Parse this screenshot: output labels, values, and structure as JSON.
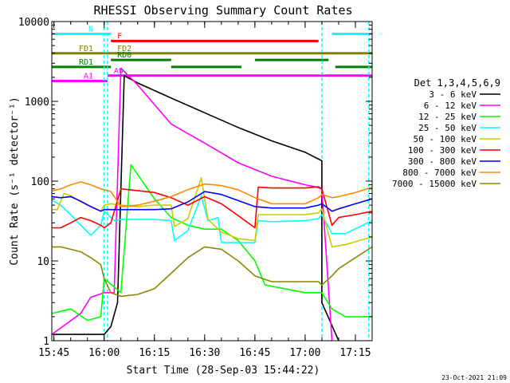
{
  "chart_data": {
    "type": "line",
    "title": "RHESSI Observing Summary Count Rates",
    "xlabel": "Start Time (28-Sep-03 15:44:22)",
    "ylabel": "Count Rate (s⁻¹ detector⁻¹)",
    "footer": "23-Oct-2021 21:09",
    "y_scale": "log",
    "xlim": [
      "15:44:22",
      "17:20:00"
    ],
    "ylim": [
      1,
      10000
    ],
    "x_ticks": [
      "15:45",
      "16:00",
      "16:15",
      "16:30",
      "16:45",
      "17:00",
      "17:15"
    ],
    "y_ticks": [
      "1",
      "10",
      "100",
      "1000",
      "10000"
    ],
    "grid": false,
    "legend_position": "right",
    "legend_title": "Det 1,3,4,5,6,9",
    "series": [
      {
        "name": "3 - 6 keV",
        "color": "#000000",
        "x": [
          "15:44:22",
          "16:00",
          "16:02",
          "16:04",
          "16:06",
          "16:10",
          "16:20",
          "16:30",
          "16:40",
          "16:50",
          "17:00",
          "17:05",
          "17:05",
          "17:10"
        ],
        "y": [
          1.2,
          1.2,
          1.5,
          3,
          2100,
          1700,
          1100,
          720,
          470,
          320,
          230,
          180,
          3,
          1
        ]
      },
      {
        "name": "6 - 12 keV",
        "color": "#ff00ff",
        "x": [
          "15:44:22",
          "15:53",
          "15:56",
          "16:00",
          "16:03",
          "16:05",
          "16:10",
          "16:20",
          "16:30",
          "16:40",
          "16:50",
          "17:00",
          "17:03",
          "17:05",
          "17:08"
        ],
        "y": [
          1.2,
          2.2,
          3.5,
          4,
          4,
          2600,
          1600,
          520,
          300,
          170,
          115,
          90,
          85,
          80,
          1
        ]
      },
      {
        "name": "12 - 25 keV",
        "color": "#00ff00",
        "x": [
          "15:44:22",
          "15:50",
          "15:55",
          "15:59",
          "16:00",
          "16:05",
          "16:08",
          "16:15",
          "16:20",
          "16:25",
          "16:30",
          "16:35",
          "16:40",
          "16:45",
          "16:48",
          "17:00",
          "17:05",
          "17:08",
          "17:12",
          "17:20"
        ],
        "y": [
          2.2,
          2.5,
          1.8,
          2.0,
          6,
          4,
          160,
          60,
          35,
          28,
          25,
          25,
          18,
          10,
          5,
          4,
          4,
          2.5,
          2.0,
          2.0
        ]
      },
      {
        "name": "25 - 50 keV",
        "color": "#00ffff",
        "x": [
          "15:44:22",
          "15:47",
          "15:50",
          "15:53",
          "15:56",
          "15:59",
          "16:00",
          "16:03",
          "16:05",
          "16:10",
          "16:15",
          "16:20",
          "16:21",
          "16:25",
          "16:29",
          "16:31",
          "16:34",
          "16:35",
          "16:40",
          "16:45",
          "16:46",
          "16:50",
          "17:00",
          "17:04",
          "17:05",
          "17:08",
          "17:12",
          "17:20"
        ],
        "y": [
          58,
          50,
          38,
          28,
          21,
          28,
          42,
          32,
          33,
          33,
          33,
          32,
          18,
          24,
          65,
          32,
          35,
          17,
          17,
          17,
          32,
          31,
          32,
          34,
          38,
          22,
          22,
          32
        ]
      },
      {
        "name": "50 - 100 keV",
        "color": "#cccc00",
        "x": [
          "15:44:22",
          "15:46",
          "15:48",
          "15:50",
          "15:53",
          "15:56",
          "15:59",
          "16:00",
          "16:02",
          "16:05",
          "16:10",
          "16:15",
          "16:20",
          "16:21",
          "16:25",
          "16:29",
          "16:31",
          "16:35",
          "16:40",
          "16:45",
          "16:46",
          "16:50",
          "17:00",
          "17:04",
          "17:05",
          "17:08",
          "17:12",
          "17:20"
        ],
        "y": [
          44,
          44,
          70,
          66,
          55,
          48,
          42,
          50,
          52,
          50,
          48,
          50,
          50,
          27,
          34,
          110,
          33,
          23,
          19,
          18,
          38,
          38,
          38,
          40,
          45,
          15,
          16,
          20
        ]
      },
      {
        "name": "100 - 300 keV",
        "color": "#ff0000",
        "x": [
          "15:44:22",
          "15:47",
          "15:50",
          "15:53",
          "15:56",
          "15:59",
          "16:00",
          "16:02",
          "16:05",
          "16:10",
          "16:15",
          "16:20",
          "16:25",
          "16:30",
          "16:35",
          "16:40",
          "16:45",
          "16:46",
          "16:50",
          "17:00",
          "17:04",
          "17:05",
          "17:08",
          "17:10",
          "17:15",
          "17:20"
        ],
        "y": [
          26,
          26,
          30,
          35,
          32,
          28,
          26,
          30,
          80,
          76,
          72,
          62,
          50,
          64,
          52,
          37,
          26,
          84,
          82,
          82,
          85,
          80,
          28,
          35,
          38,
          42
        ]
      },
      {
        "name": "300 - 800 keV",
        "color": "#0000ff",
        "x": [
          "15:44:22",
          "15:47",
          "15:50",
          "15:53",
          "15:56",
          "15:59",
          "16:00",
          "16:02",
          "16:05",
          "16:10",
          "16:15",
          "16:20",
          "16:25",
          "16:30",
          "16:35",
          "16:40",
          "16:45",
          "16:50",
          "17:00",
          "17:04",
          "17:05",
          "17:08",
          "17:10",
          "17:15",
          "17:20"
        ],
        "y": [
          64,
          62,
          64,
          56,
          48,
          42,
          44,
          44,
          44,
          44,
          44,
          45,
          55,
          74,
          68,
          57,
          48,
          46,
          46,
          50,
          52,
          42,
          45,
          52,
          60
        ]
      },
      {
        "name": "800 - 7000 keV",
        "color": "#ff8800",
        "x": [
          "15:44:22",
          "15:47",
          "15:50",
          "15:53",
          "15:56",
          "15:59",
          "16:00",
          "16:02",
          "16:05",
          "16:10",
          "16:15",
          "16:20",
          "16:25",
          "16:30",
          "16:35",
          "16:40",
          "16:45",
          "16:50",
          "17:00",
          "17:04",
          "17:05",
          "17:08",
          "17:10",
          "17:15",
          "17:20"
        ],
        "y": [
          75,
          80,
          90,
          98,
          90,
          80,
          78,
          74,
          48,
          50,
          56,
          64,
          78,
          92,
          88,
          78,
          62,
          52,
          52,
          62,
          68,
          62,
          64,
          72,
          84
        ]
      },
      {
        "name": "7000 - 15000 keV",
        "color": "#888800",
        "x": [
          "15:44:22",
          "15:47",
          "15:50",
          "15:53",
          "15:56",
          "15:59",
          "16:00",
          "16:02",
          "16:05",
          "16:10",
          "16:15",
          "16:20",
          "16:25",
          "16:30",
          "16:35",
          "16:40",
          "16:45",
          "16:50",
          "17:00",
          "17:04",
          "17:05",
          "17:08",
          "17:10",
          "17:15",
          "17:20"
        ],
        "y": [
          15,
          15,
          14,
          13,
          11,
          9,
          6,
          4,
          3.6,
          3.8,
          4.5,
          7,
          11,
          15,
          14,
          10,
          6.5,
          5.5,
          5.5,
          5.5,
          5,
          6.5,
          8,
          11,
          15
        ]
      }
    ],
    "flag_bars": [
      {
        "label": "N",
        "color": "#00ffff",
        "level": 7000,
        "segments": [
          [
            "15:44:22",
            "16:02"
          ],
          [
            "17:08",
            "17:20"
          ]
        ]
      },
      {
        "label": "F",
        "color": "#ff0000",
        "level": 5700,
        "segments": [
          [
            "16:02",
            "17:04"
          ]
        ]
      },
      {
        "label": "FD1",
        "color": "#808000",
        "level": 4000,
        "segments": [
          [
            "15:44:22",
            "16:02"
          ]
        ]
      },
      {
        "label": "FD2",
        "color": "#808000",
        "level": 4000,
        "segments": [
          [
            "16:02",
            "17:20"
          ]
        ]
      },
      {
        "label": "RD0",
        "color": "#008000",
        "level": 3300,
        "segments": [
          [
            "16:02",
            "16:20"
          ],
          [
            "16:45",
            "17:07"
          ]
        ]
      },
      {
        "label": "RD1",
        "color": "#008000",
        "level": 2700,
        "segments": [
          [
            "15:44:22",
            "16:02"
          ],
          [
            "16:20",
            "16:41"
          ],
          [
            "17:09",
            "17:20"
          ]
        ]
      },
      {
        "label": "A1",
        "color": "#ff00ff",
        "level": 1800,
        "segments": [
          [
            "15:44:22",
            "16:01"
          ]
        ]
      },
      {
        "label": "A0",
        "color": "#ff00ff",
        "level": 2100,
        "segments": [
          [
            "16:01",
            "17:20"
          ]
        ]
      }
    ],
    "vertical_markers": [
      {
        "t": "16:00",
        "color": "#00ffff"
      },
      {
        "t": "16:01",
        "color": "#00ffff"
      },
      {
        "t": "17:05",
        "color": "#00ffff"
      },
      {
        "t": "17:19",
        "color": "#00ffff"
      }
    ]
  }
}
